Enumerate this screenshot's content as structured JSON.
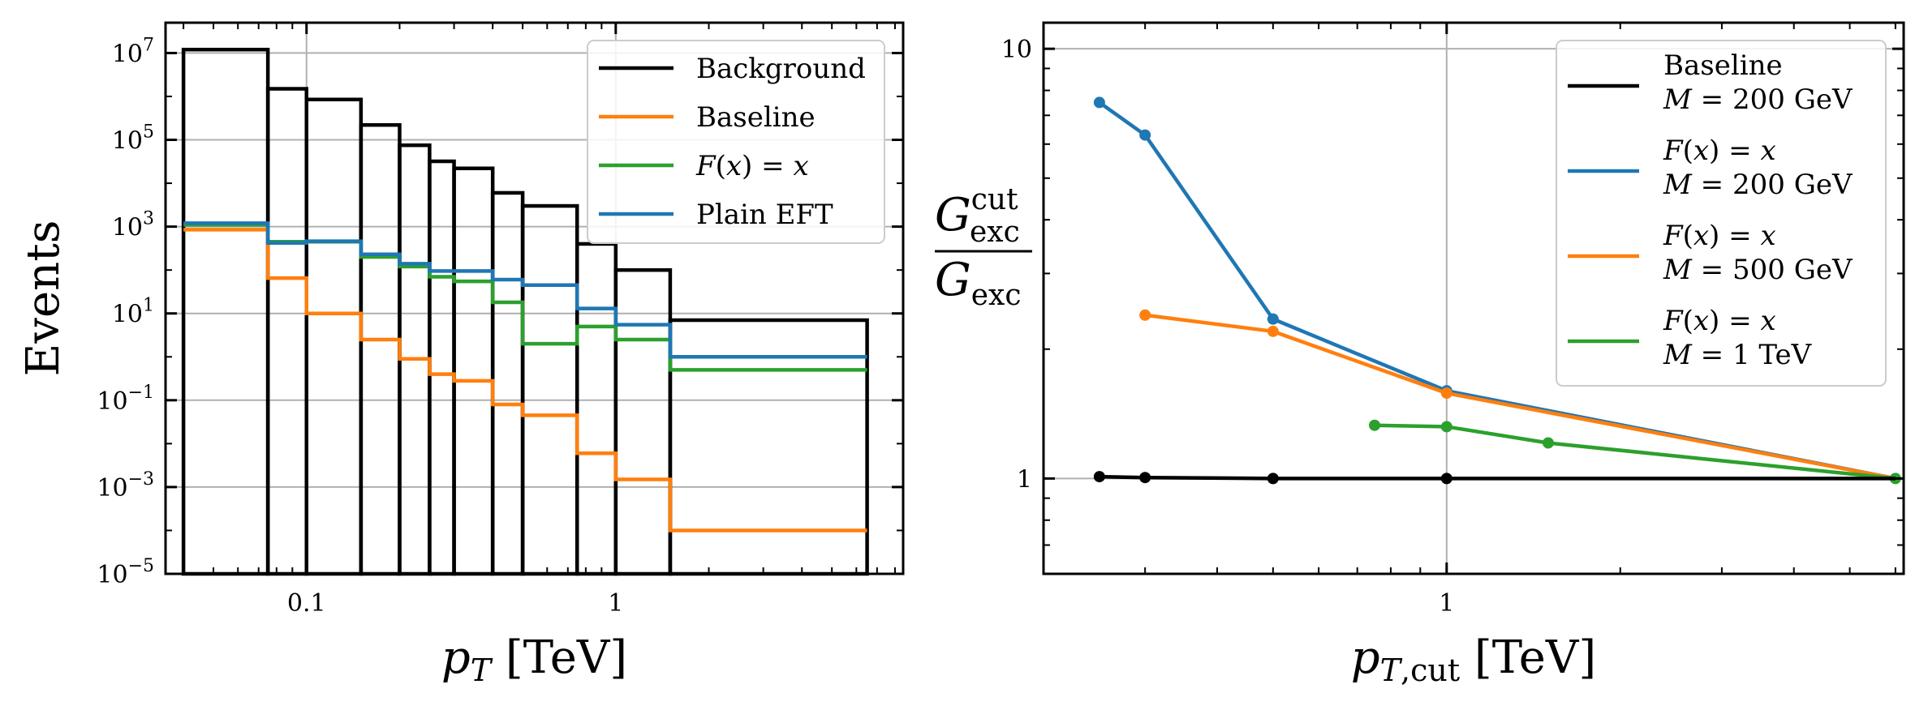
{
  "chart_data": [
    {
      "type": "line",
      "subtype": "step-histogram",
      "title": "",
      "xlabel": "p_T [TeV]",
      "ylabel": "Events",
      "xscale": "log",
      "yscale": "log",
      "xlim": [
        0.035,
        8.5
      ],
      "ylim": [
        1e-05,
        50000000.0
      ],
      "grid": true,
      "legend_position": "top-right",
      "x_ticks": [
        {
          "value": 0.1,
          "label": "0.1"
        },
        {
          "value": 1,
          "label": "1"
        }
      ],
      "y_ticks": [
        {
          "value": 10000000.0,
          "base": "10",
          "exp": "7"
        },
        {
          "value": 100000.0,
          "base": "10",
          "exp": "5"
        },
        {
          "value": 1000.0,
          "base": "10",
          "exp": "3"
        },
        {
          "value": 10.0,
          "base": "10",
          "exp": "1"
        },
        {
          "value": 0.1,
          "base": "10",
          "exp": "−1"
        },
        {
          "value": 0.001,
          "base": "10",
          "exp": "−3"
        },
        {
          "value": 1e-05,
          "base": "10",
          "exp": "−5"
        }
      ],
      "bin_edges": [
        0.04,
        0.075,
        0.1,
        0.15,
        0.2,
        0.25,
        0.3,
        0.4,
        0.5,
        0.75,
        1.0,
        1.5,
        6.5
      ],
      "series": [
        {
          "name": "Background",
          "color": "#000000",
          "filled_bars": true,
          "values": [
            12000000,
            1500000,
            850000,
            220000,
            75000,
            32000,
            22000,
            6000,
            3000,
            400,
            100,
            7
          ]
        },
        {
          "name": "Baseline",
          "color": "#ff7f0e",
          "values": [
            850,
            65,
            10,
            2.5,
            0.9,
            0.4,
            0.28,
            0.08,
            0.045,
            0.006,
            0.0015,
            0.0001
          ]
        },
        {
          "name": "F(x) = x",
          "color": "#2ca02c",
          "values": [
            1100,
            450,
            450,
            200,
            120,
            70,
            55,
            18,
            2,
            5,
            2.5,
            0.5
          ]
        },
        {
          "name": "Plain EFT",
          "color": "#1f77b4",
          "values": [
            1200,
            420,
            460,
            230,
            140,
            95,
            95,
            60,
            45,
            13,
            5.5,
            1
          ]
        }
      ],
      "legend": [
        {
          "series": "Background",
          "lines": [
            "Background"
          ]
        },
        {
          "series": "Baseline",
          "lines": [
            "Baseline"
          ]
        },
        {
          "series": "F(x) = x",
          "lines": [
            "F(x) = x"
          ]
        },
        {
          "series": "Plain EFT",
          "lines": [
            "Plain EFT"
          ]
        }
      ]
    },
    {
      "type": "line",
      "title": "",
      "xlabel": "p_T,cut [TeV]",
      "ylabel": "G_exc^cut / G_exc",
      "xscale": "log",
      "yscale": "log",
      "xlim": [
        0.2,
        6.2
      ],
      "ylim": [
        0.6,
        11.5
      ],
      "grid": true,
      "legend_position": "top-right",
      "x_ticks": [
        {
          "value": 1,
          "label": "1"
        }
      ],
      "y_ticks": [
        {
          "value": 10,
          "label": "10"
        },
        {
          "value": 1,
          "label": "1"
        }
      ],
      "series": [
        {
          "name": "Baseline M = 200 GeV",
          "color": "#000000",
          "x": [
            0.25,
            0.3,
            0.5,
            1.0,
            6.0
          ],
          "y": [
            1.01,
            1.005,
            1.0,
            1.0,
            1.0
          ],
          "markers": [
            true,
            true,
            true,
            true,
            false
          ]
        },
        {
          "name": "F(x) = x M = 200 GeV",
          "color": "#1f77b4",
          "x": [
            0.25,
            0.3,
            0.5,
            1.0,
            6.0
          ],
          "y": [
            7.5,
            6.3,
            2.35,
            1.6,
            1.0
          ],
          "markers": [
            true,
            true,
            true,
            true,
            false
          ]
        },
        {
          "name": "F(x) = x M = 500 GeV",
          "color": "#ff7f0e",
          "x": [
            0.3,
            0.5,
            1.0,
            6.0
          ],
          "y": [
            2.4,
            2.2,
            1.58,
            1.0
          ],
          "markers": [
            true,
            true,
            true,
            false
          ]
        },
        {
          "name": "F(x) = x M = 1 TeV",
          "color": "#2ca02c",
          "x": [
            0.75,
            1.0,
            1.5,
            6.0
          ],
          "y": [
            1.33,
            1.32,
            1.21,
            1.0
          ],
          "markers": [
            true,
            true,
            true,
            true
          ]
        }
      ],
      "legend": [
        {
          "series": "Baseline M = 200 GeV",
          "lines": [
            "Baseline",
            "M = 200 GeV"
          ]
        },
        {
          "series": "F(x) = x M = 200 GeV",
          "lines": [
            "F(x) = x",
            "M = 200 GeV"
          ]
        },
        {
          "series": "F(x) = x M = 500 GeV",
          "lines": [
            "F(x) = x",
            "M = 500 GeV"
          ]
        },
        {
          "series": "F(x) = x M = 1 TeV",
          "lines": [
            "F(x) = x",
            "M = 1 TeV"
          ]
        }
      ]
    }
  ]
}
